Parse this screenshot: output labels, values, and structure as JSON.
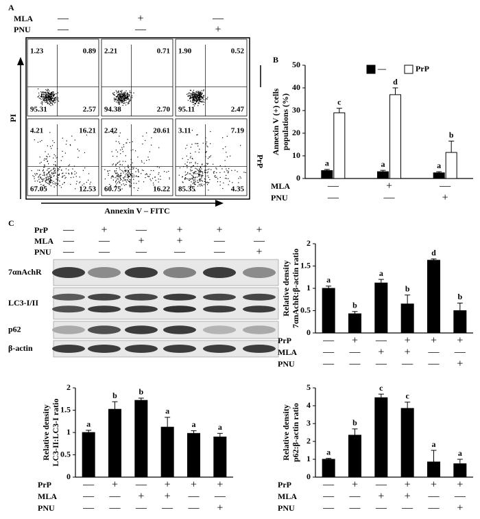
{
  "figure": {
    "panel_labels": [
      "A",
      "B",
      "C"
    ],
    "flow": {
      "headers": [
        {
          "label": "MLA",
          "signs": [
            "—",
            "+",
            "—"
          ]
        },
        {
          "label": "PNU",
          "signs": [
            "—",
            "—",
            "+"
          ]
        }
      ],
      "y_label": "PI",
      "x_label": "Annexin V – FITC",
      "row_label": "PrP",
      "plots": [
        [
          "1.23",
          "0.89",
          "95.31",
          "2.57"
        ],
        [
          "2.21",
          "0.71",
          "94.38",
          "2.70"
        ],
        [
          "1.90",
          "0.52",
          "95.11",
          "2.47"
        ],
        [
          "4.21",
          "16.21",
          "67.05",
          "12.53"
        ],
        [
          "2.42",
          "20.61",
          "60.75",
          "16.22"
        ],
        [
          "3.11",
          "7.19",
          "85.35",
          "4.35"
        ]
      ]
    },
    "blot": {
      "conditions": [
        {
          "label": "PrP",
          "signs": [
            "—",
            "+",
            "—",
            "+",
            "+",
            "+"
          ]
        },
        {
          "label": "MLA",
          "signs": [
            "—",
            "—",
            "+",
            "+",
            "—",
            "—"
          ]
        },
        {
          "label": "PNU",
          "signs": [
            "—",
            "—",
            "—",
            "—",
            "—",
            "+"
          ]
        }
      ],
      "bands": [
        "7αnAchR",
        "LC3-I/II",
        "p62",
        "β-actin"
      ]
    }
  },
  "chart_data": [
    {
      "type": "bar",
      "ylabel": [
        "Annexin V (+) cells",
        "populations (%)"
      ],
      "ylim": [
        0,
        50
      ],
      "yticks": [
        0,
        10,
        20,
        30,
        40,
        50
      ],
      "legend": "top",
      "series": [
        {
          "name": "—",
          "color": "#000000",
          "values": [
            3.5,
            3,
            2.5
          ],
          "errors": [
            0.5,
            0.6,
            0.5
          ],
          "annotations": [
            "a",
            "a",
            "a"
          ]
        },
        {
          "name": "PrP",
          "color": "#ffffff",
          "values": [
            29,
            37,
            11.5
          ],
          "errors": [
            2,
            3,
            5
          ],
          "annotations": [
            "c",
            "d",
            "b"
          ]
        }
      ],
      "conditions": [
        {
          "label": "MLA",
          "signs": [
            "—",
            "+",
            "—"
          ]
        },
        {
          "label": "PNU",
          "signs": [
            "—",
            "—",
            "+"
          ]
        }
      ]
    },
    {
      "type": "bar",
      "ylabel": [
        "Relative density",
        "7αnAchR:β-actin ratio"
      ],
      "ylim": [
        0,
        2
      ],
      "yticks": [
        0,
        0.5,
        1,
        1.5,
        2
      ],
      "color": "#000000",
      "values": [
        1.0,
        0.43,
        1.12,
        0.65,
        1.63,
        0.5
      ],
      "errors": [
        0.05,
        0.05,
        0.08,
        0.2,
        0.03,
        0.17
      ],
      "annotations": [
        "a",
        "b",
        "a",
        "b",
        "d",
        "b"
      ],
      "conditions": [
        {
          "label": "PrP",
          "signs": [
            "—",
            "+",
            "—",
            "+",
            "+",
            "+"
          ]
        },
        {
          "label": "MLA",
          "signs": [
            "—",
            "—",
            "+",
            "+",
            "—",
            "—"
          ]
        },
        {
          "label": "PNU",
          "signs": [
            "—",
            "—",
            "—",
            "—",
            "—",
            "+"
          ]
        }
      ]
    },
    {
      "type": "bar",
      "ylabel": [
        "Relative density",
        "LC3-II:LC3-I ratio"
      ],
      "ylim": [
        0,
        2
      ],
      "yticks": [
        0,
        0.5,
        1,
        1.5,
        2
      ],
      "color": "#000000",
      "values": [
        1.0,
        1.52,
        1.72,
        1.12,
        0.98,
        0.9
      ],
      "errors": [
        0.05,
        0.17,
        0.05,
        0.22,
        0.06,
        0.08
      ],
      "annotations": [
        "a",
        "b",
        "b",
        "a",
        "a",
        "a"
      ],
      "conditions": [
        {
          "label": "PrP",
          "signs": [
            "—",
            "+",
            "—",
            "+",
            "+",
            "+"
          ]
        },
        {
          "label": "MLA",
          "signs": [
            "—",
            "—",
            "+",
            "+",
            "—",
            "—"
          ]
        },
        {
          "label": "PNU",
          "signs": [
            "—",
            "—",
            "—",
            "—",
            "—",
            "+"
          ]
        }
      ]
    },
    {
      "type": "bar",
      "ylabel": [
        "Relative density",
        "p62:β-actin ratio"
      ],
      "ylim": [
        0,
        5
      ],
      "yticks": [
        0,
        1,
        2,
        3,
        4,
        5
      ],
      "color": "#000000",
      "values": [
        1.0,
        2.35,
        4.45,
        3.85,
        0.85,
        0.75
      ],
      "errors": [
        0.05,
        0.35,
        0.2,
        0.35,
        0.65,
        0.25
      ],
      "annotations": [
        "a",
        "b",
        "c",
        "c",
        "a",
        "a"
      ],
      "conditions": [
        {
          "label": "PrP",
          "signs": [
            "—",
            "+",
            "—",
            "+",
            "+",
            "+"
          ]
        },
        {
          "label": "MLA",
          "signs": [
            "—",
            "—",
            "+",
            "+",
            "—",
            "—"
          ]
        },
        {
          "label": "PNU",
          "signs": [
            "—",
            "—",
            "—",
            "—",
            "—",
            "+"
          ]
        }
      ]
    }
  ]
}
